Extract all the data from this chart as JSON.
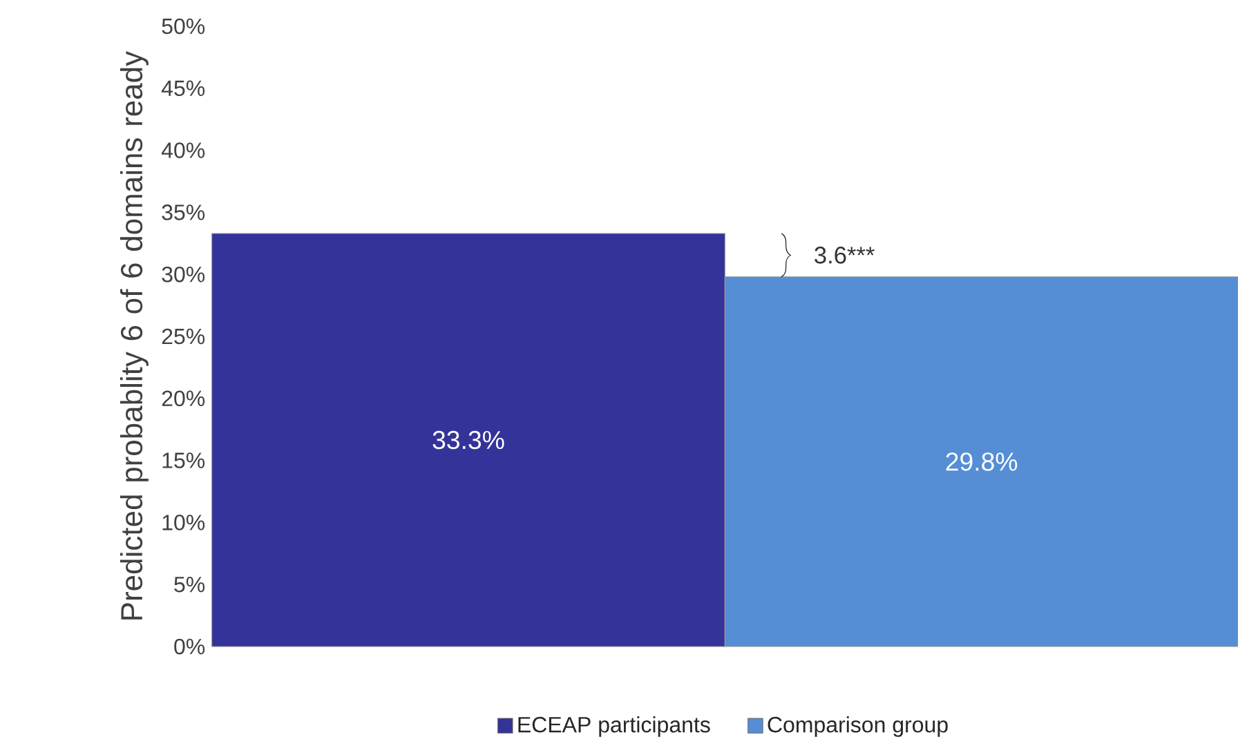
{
  "chart_data": {
    "type": "bar",
    "ylabel": "Predicted probablity 6 of 6 domains ready",
    "categories": [
      null
    ],
    "series": [
      {
        "name": "ECEAP participants",
        "color": "#333399",
        "values": [
          33.3
        ],
        "value_labels": [
          "33.3%"
        ]
      },
      {
        "name": "Comparison group",
        "color": "#558ed5",
        "values": [
          29.8
        ],
        "value_labels": [
          "29.8%"
        ]
      }
    ],
    "ylim": [
      0,
      50
    ],
    "yticks": [
      {
        "value": 0,
        "label": "0%"
      },
      {
        "value": 5,
        "label": "5%"
      },
      {
        "value": 10,
        "label": "10%"
      },
      {
        "value": 15,
        "label": "15%"
      },
      {
        "value": 20,
        "label": "20%"
      },
      {
        "value": 25,
        "label": "25%"
      },
      {
        "value": 30,
        "label": "30%"
      },
      {
        "value": 35,
        "label": "35%"
      },
      {
        "value": 40,
        "label": "40%"
      },
      {
        "value": 45,
        "label": "45%"
      },
      {
        "value": 50,
        "label": "50%"
      }
    ],
    "annotations": [
      "3.6***"
    ],
    "grid": false,
    "legend": "bottom"
  }
}
